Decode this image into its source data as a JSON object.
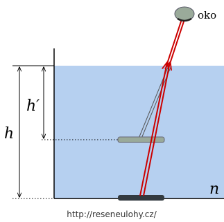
{
  "labels": {
    "eye": "oko",
    "apparent_depth": "h′",
    "depth": "h",
    "refractive_index": "n"
  },
  "footer": "http://reseneulohy.cz/"
}
